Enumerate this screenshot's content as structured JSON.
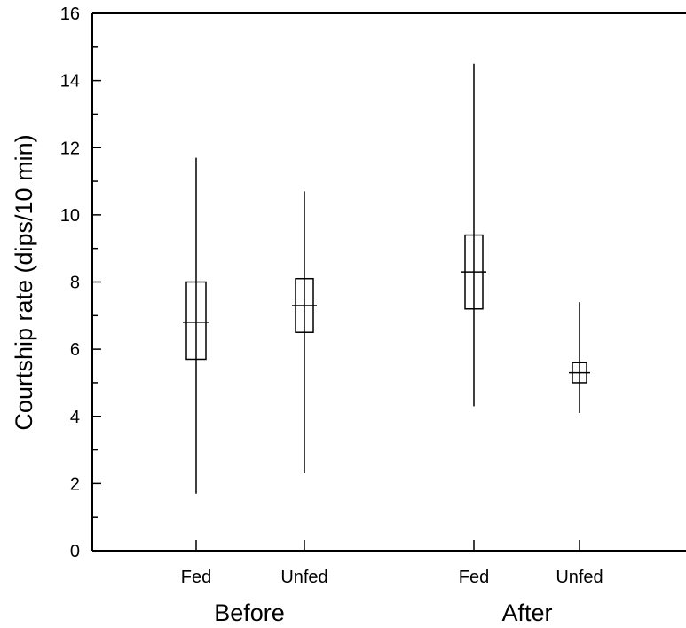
{
  "chart_data": {
    "type": "box",
    "ylabel": "Courtship rate (dips/10 min)",
    "ylim": [
      0,
      16
    ],
    "yticks": [
      0,
      2,
      4,
      6,
      8,
      10,
      12,
      14,
      16
    ],
    "groups": [
      "Before",
      "After"
    ],
    "boxes": [
      {
        "group": "Before",
        "label": "Fed",
        "min": 1.7,
        "q1": 5.7,
        "median": 6.8,
        "q3": 8.0,
        "max": 11.7
      },
      {
        "group": "Before",
        "label": "Unfed",
        "min": 2.3,
        "q1": 6.5,
        "median": 7.3,
        "q3": 8.1,
        "max": 10.7
      },
      {
        "group": "After",
        "label": "Fed",
        "min": 4.3,
        "q1": 7.2,
        "median": 8.3,
        "q3": 9.4,
        "max": 14.5
      },
      {
        "group": "After",
        "label": "Unfed",
        "min": 4.1,
        "q1": 5.0,
        "median": 5.3,
        "q3": 5.6,
        "max": 7.4
      }
    ],
    "colors": {
      "line": "#000000",
      "box_fill": "#ffffff"
    }
  }
}
